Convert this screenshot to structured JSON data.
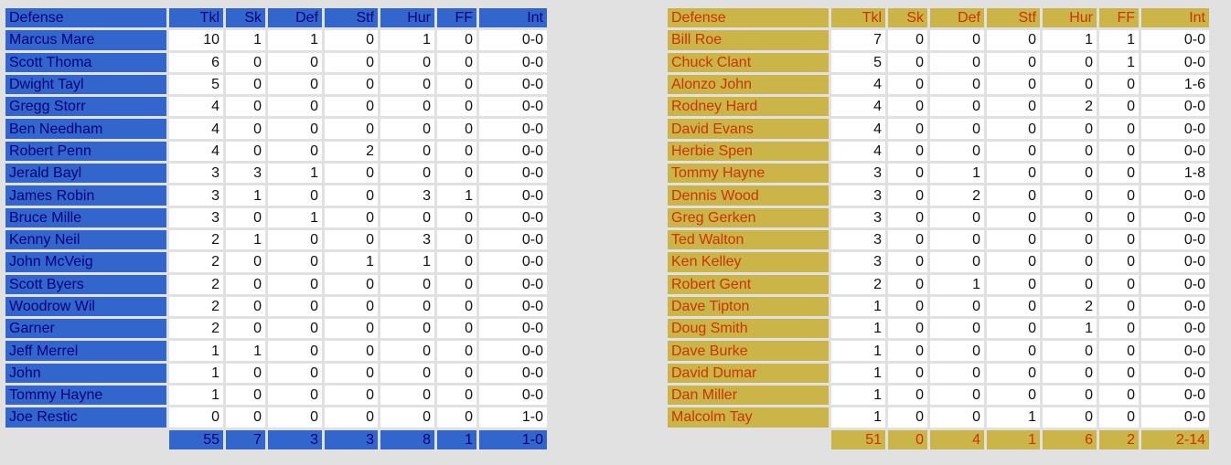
{
  "columns": [
    "Defense",
    "Tkl",
    "Sk",
    "Def",
    "Stf",
    "Hur",
    "FF",
    "Int"
  ],
  "colors": {
    "team_a_accent": "#3366cc",
    "team_a_text": "#000080",
    "team_b_accent": "#cbb548",
    "team_b_text": "#cc3300"
  },
  "teams": [
    {
      "rows": [
        [
          "Marcus Mare",
          "10",
          "1",
          "1",
          "0",
          "1",
          "0",
          "0-0"
        ],
        [
          "Scott Thoma",
          "6",
          "0",
          "0",
          "0",
          "0",
          "0",
          "0-0"
        ],
        [
          "Dwight Tayl",
          "5",
          "0",
          "0",
          "0",
          "0",
          "0",
          "0-0"
        ],
        [
          "Gregg Storr",
          "4",
          "0",
          "0",
          "0",
          "0",
          "0",
          "0-0"
        ],
        [
          "Ben Needham",
          "4",
          "0",
          "0",
          "0",
          "0",
          "0",
          "0-0"
        ],
        [
          "Robert Penn",
          "4",
          "0",
          "0",
          "2",
          "0",
          "0",
          "0-0"
        ],
        [
          "Jerald Bayl",
          "3",
          "3",
          "1",
          "0",
          "0",
          "0",
          "0-0"
        ],
        [
          "James Robin",
          "3",
          "1",
          "0",
          "0",
          "3",
          "1",
          "0-0"
        ],
        [
          "Bruce Mille",
          "3",
          "0",
          "1",
          "0",
          "0",
          "0",
          "0-0"
        ],
        [
          "Kenny Neil",
          "2",
          "1",
          "0",
          "0",
          "3",
          "0",
          "0-0"
        ],
        [
          "John McVeig",
          "2",
          "0",
          "0",
          "1",
          "1",
          "0",
          "0-0"
        ],
        [
          "Scott Byers",
          "2",
          "0",
          "0",
          "0",
          "0",
          "0",
          "0-0"
        ],
        [
          "Woodrow Wil",
          "2",
          "0",
          "0",
          "0",
          "0",
          "0",
          "0-0"
        ],
        [
          "Garner",
          "2",
          "0",
          "0",
          "0",
          "0",
          "0",
          "0-0"
        ],
        [
          "Jeff Merrel",
          "1",
          "1",
          "0",
          "0",
          "0",
          "0",
          "0-0"
        ],
        [
          "John",
          "1",
          "0",
          "0",
          "0",
          "0",
          "0",
          "0-0"
        ],
        [
          "Tommy Hayne",
          "1",
          "0",
          "0",
          "0",
          "0",
          "0",
          "0-0"
        ],
        [
          "Joe Restic",
          "0",
          "0",
          "0",
          "0",
          "0",
          "0",
          "1-0"
        ]
      ],
      "totals": [
        "55",
        "7",
        "3",
        "3",
        "8",
        "1",
        "1-0"
      ]
    },
    {
      "rows": [
        [
          "Bill Roe",
          "7",
          "0",
          "0",
          "0",
          "1",
          "1",
          "0-0"
        ],
        [
          "Chuck Clant",
          "5",
          "0",
          "0",
          "0",
          "0",
          "1",
          "0-0"
        ],
        [
          "Alonzo John",
          "4",
          "0",
          "0",
          "0",
          "0",
          "0",
          "1-6"
        ],
        [
          "Rodney Hard",
          "4",
          "0",
          "0",
          "0",
          "2",
          "0",
          "0-0"
        ],
        [
          "David Evans",
          "4",
          "0",
          "0",
          "0",
          "0",
          "0",
          "0-0"
        ],
        [
          "Herbie Spen",
          "4",
          "0",
          "0",
          "0",
          "0",
          "0",
          "0-0"
        ],
        [
          "Tommy Hayne",
          "3",
          "0",
          "1",
          "0",
          "0",
          "0",
          "1-8"
        ],
        [
          "Dennis Wood",
          "3",
          "0",
          "2",
          "0",
          "0",
          "0",
          "0-0"
        ],
        [
          "Greg Gerken",
          "3",
          "0",
          "0",
          "0",
          "0",
          "0",
          "0-0"
        ],
        [
          "Ted Walton",
          "3",
          "0",
          "0",
          "0",
          "0",
          "0",
          "0-0"
        ],
        [
          "Ken Kelley",
          "3",
          "0",
          "0",
          "0",
          "0",
          "0",
          "0-0"
        ],
        [
          "Robert Gent",
          "2",
          "0",
          "1",
          "0",
          "0",
          "0",
          "0-0"
        ],
        [
          "Dave Tipton",
          "1",
          "0",
          "0",
          "0",
          "2",
          "0",
          "0-0"
        ],
        [
          "Doug Smith",
          "1",
          "0",
          "0",
          "0",
          "1",
          "0",
          "0-0"
        ],
        [
          "Dave Burke",
          "1",
          "0",
          "0",
          "0",
          "0",
          "0",
          "0-0"
        ],
        [
          "David Dumar",
          "1",
          "0",
          "0",
          "0",
          "0",
          "0",
          "0-0"
        ],
        [
          "Dan Miller",
          "1",
          "0",
          "0",
          "0",
          "0",
          "0",
          "0-0"
        ],
        [
          "Malcolm Tay",
          "1",
          "0",
          "0",
          "1",
          "0",
          "0",
          "0-0"
        ]
      ],
      "totals": [
        "51",
        "0",
        "4",
        "1",
        "6",
        "2",
        "2-14"
      ]
    }
  ]
}
